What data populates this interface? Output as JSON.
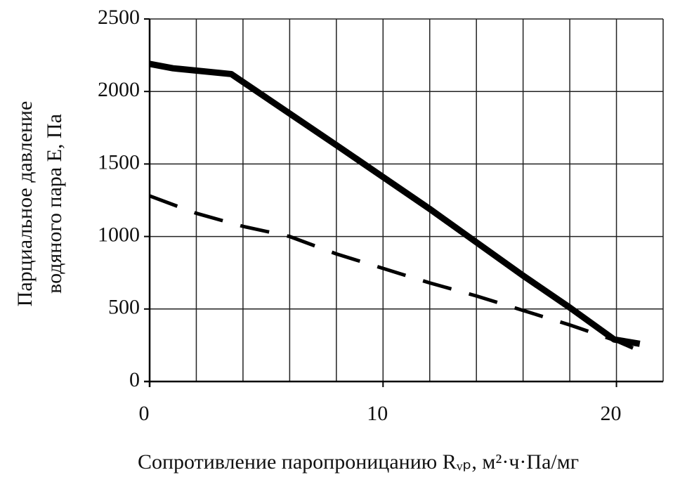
{
  "chart_data": {
    "type": "line",
    "xlabel": "Сопротивление паропроницанию Rᵥₚ, м²·ч·Па/мг",
    "ylabel": [
      "Парциальное давление",
      "водяного пара E, Па"
    ],
    "series": [
      {
        "color": "#000000",
        "style": "solid",
        "width": 9,
        "x": [
          0,
          1,
          3.5,
          8,
          12,
          14,
          16,
          18,
          19.9,
          21
        ],
        "values": [
          2190,
          2160,
          2120,
          1630,
          1190,
          960,
          730,
          510,
          290,
          260
        ]
      },
      {
        "color": "#000000",
        "style": "dashed",
        "width": 5,
        "x": [
          0,
          2,
          4,
          6,
          8,
          10,
          12,
          14,
          16,
          18,
          20,
          21
        ],
        "values": [
          1280,
          1160,
          1070,
          1000,
          880,
          780,
          680,
          590,
          490,
          390,
          280,
          210
        ]
      }
    ],
    "xlim": [
      0,
      22
    ],
    "ylim": [
      0,
      2500
    ],
    "xticks": [
      0,
      10,
      20
    ],
    "xgrid": [
      0,
      2,
      4,
      6,
      8,
      10,
      12,
      14,
      16,
      18,
      20,
      22
    ],
    "yticks": [
      0,
      500,
      1000,
      1500,
      2000,
      2500
    ],
    "grid": true
  }
}
